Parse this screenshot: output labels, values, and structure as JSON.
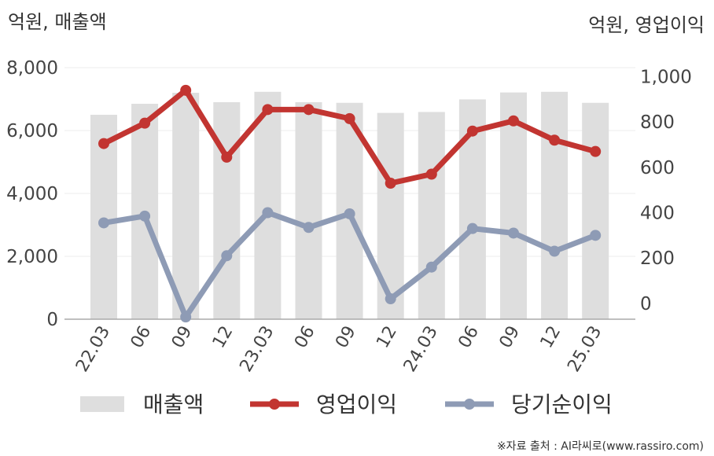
{
  "chart_data": {
    "type": "bar+line",
    "left_unit": "억원, 매출액",
    "right_unit": "억원, 영업이익",
    "categories": [
      "22.03",
      "06",
      "09",
      "12",
      "23.03",
      "06",
      "09",
      "12",
      "24.03",
      "06",
      "09",
      "12",
      "25.03"
    ],
    "left_axis": {
      "ylim": [
        0,
        8000
      ],
      "ticks": [
        "0",
        "2,000",
        "4,000",
        "6,000",
        "8,000"
      ]
    },
    "right_axis": {
      "ylim": [
        -70,
        1040
      ],
      "ticks": [
        "0",
        "200",
        "400",
        "600",
        "800",
        "1,000"
      ]
    },
    "grid": true,
    "legend_position": "bottom",
    "series": [
      {
        "name": "매출액",
        "type": "bar",
        "axis": "left",
        "color": "#dedede",
        "values": [
          6500,
          6850,
          7200,
          6900,
          7230,
          6900,
          6880,
          6560,
          6590,
          6990,
          7210,
          7230,
          6880
        ]
      },
      {
        "name": "영업이익",
        "type": "line",
        "axis": "right",
        "color": "#c23531",
        "values": [
          705,
          795,
          940,
          645,
          855,
          855,
          815,
          530,
          570,
          760,
          805,
          720,
          670
        ]
      },
      {
        "name": "당기순이익",
        "type": "line",
        "axis": "right",
        "color": "#8e9bb5",
        "values": [
          355,
          385,
          -60,
          210,
          400,
          335,
          395,
          20,
          160,
          330,
          310,
          230,
          300
        ]
      }
    ],
    "source": "※자료 출처 : AI라씨로(www.rassiro.com)"
  }
}
